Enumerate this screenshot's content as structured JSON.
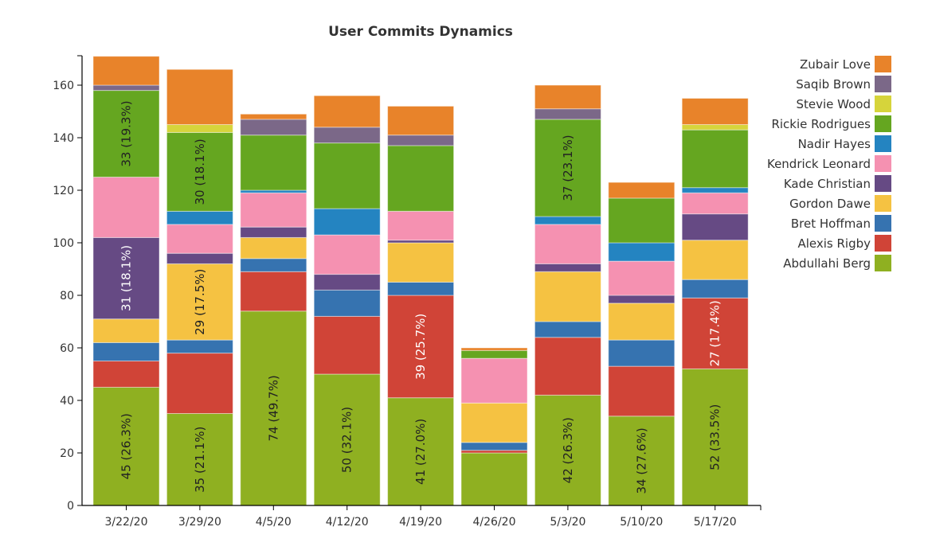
{
  "chart_data": {
    "type": "bar",
    "stacked": true,
    "title": "User Commits Dynamics",
    "xlabel": "",
    "ylabel": "",
    "ylim": [
      0,
      171
    ],
    "yticks": [
      0,
      20,
      40,
      60,
      80,
      100,
      120,
      140,
      160
    ],
    "grid": false,
    "legend_position": "right",
    "categories": [
      "3/22/20",
      "3/29/20",
      "4/5/20",
      "4/12/20",
      "4/19/20",
      "4/26/20",
      "5/3/20",
      "5/10/20",
      "5/17/20"
    ],
    "series": [
      {
        "name": "Abdullahi Berg",
        "color": "#8FB021",
        "values": [
          45,
          35,
          74,
          50,
          41,
          20,
          42,
          34,
          52
        ]
      },
      {
        "name": "Alexis Rigby",
        "color": "#D04437",
        "values": [
          10,
          23,
          15,
          22,
          39,
          1,
          22,
          19,
          27
        ]
      },
      {
        "name": "Bret Hoffman",
        "color": "#3673B0",
        "values": [
          7,
          5,
          5,
          10,
          5,
          3,
          6,
          10,
          7
        ]
      },
      {
        "name": "Gordon Dawe",
        "color": "#F5C242",
        "values": [
          9,
          29,
          8,
          0,
          15,
          15,
          19,
          14,
          15
        ]
      },
      {
        "name": "Kade Christian",
        "color": "#664A84",
        "values": [
          31,
          4,
          4,
          6,
          1,
          0,
          3,
          3,
          10
        ]
      },
      {
        "name": "Kendrick Leonard",
        "color": "#F591B1",
        "values": [
          23,
          11,
          13,
          15,
          11,
          17,
          15,
          13,
          8
        ]
      },
      {
        "name": "Nadir Hayes",
        "color": "#2484C1",
        "values": [
          0,
          5,
          1,
          10,
          0,
          0,
          3,
          7,
          2
        ]
      },
      {
        "name": "Rickie Rodrigues",
        "color": "#65A620",
        "values": [
          33,
          30,
          21,
          25,
          25,
          3,
          37,
          17,
          22
        ]
      },
      {
        "name": "Stevie Wood",
        "color": "#D6D43B",
        "values": [
          0,
          3,
          0,
          0,
          0,
          0,
          0,
          0,
          2
        ]
      },
      {
        "name": "Saqib Brown",
        "color": "#7B6888",
        "values": [
          2,
          0,
          6,
          6,
          4,
          0,
          4,
          0,
          0
        ]
      },
      {
        "name": "Zubair Love",
        "color": "#E8832A",
        "values": [
          11,
          21,
          2,
          12,
          11,
          1,
          9,
          6,
          10
        ]
      }
    ],
    "data_labels": [
      {
        "category": "3/22/20",
        "series": "Abdullahi Berg",
        "text": "45 (26.3%)"
      },
      {
        "category": "3/22/20",
        "series": "Kade Christian",
        "text": "31 (18.1%)"
      },
      {
        "category": "3/22/20",
        "series": "Rickie Rodrigues",
        "text": "33 (19.3%)"
      },
      {
        "category": "3/29/20",
        "series": "Abdullahi Berg",
        "text": "35 (21.1%)"
      },
      {
        "category": "3/29/20",
        "series": "Gordon Dawe",
        "text": "29 (17.5%)"
      },
      {
        "category": "3/29/20",
        "series": "Rickie Rodrigues",
        "text": "30 (18.1%)"
      },
      {
        "category": "4/5/20",
        "series": "Abdullahi Berg",
        "text": "74 (49.7%)"
      },
      {
        "category": "4/12/20",
        "series": "Abdullahi Berg",
        "text": "50 (32.1%)"
      },
      {
        "category": "4/19/20",
        "series": "Abdullahi Berg",
        "text": "41 (27.0%)"
      },
      {
        "category": "4/19/20",
        "series": "Alexis Rigby",
        "text": "39 (25.7%)"
      },
      {
        "category": "5/3/20",
        "series": "Abdullahi Berg",
        "text": "42 (26.3%)"
      },
      {
        "category": "5/3/20",
        "series": "Rickie Rodrigues",
        "text": "37 (23.1%)"
      },
      {
        "category": "5/10/20",
        "series": "Abdullahi Berg",
        "text": "34 (27.6%)"
      },
      {
        "category": "5/17/20",
        "series": "Abdullahi Berg",
        "text": "52 (33.5%)"
      },
      {
        "category": "5/17/20",
        "series": "Alexis Rigby",
        "text": "27 (17.4%)"
      }
    ]
  }
}
